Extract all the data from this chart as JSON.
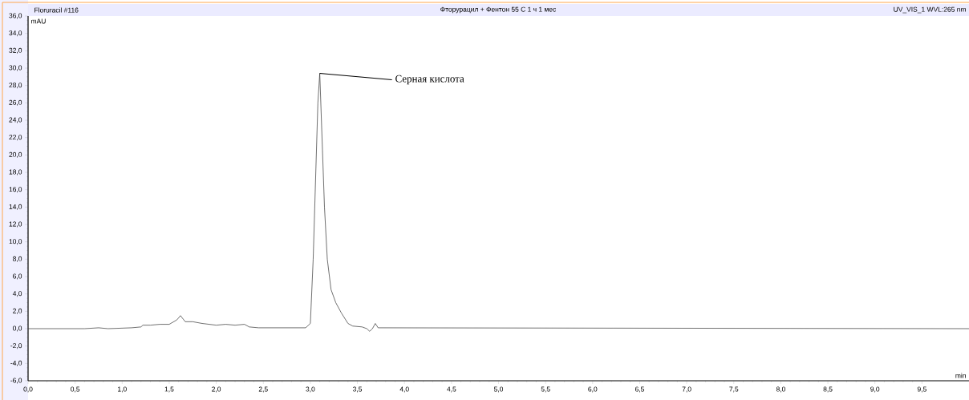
{
  "chart_data": {
    "type": "line",
    "title": "Фторурацил + Фентон 55 С 1 ч 1 мес",
    "xlabel": "min",
    "ylabel": "mAU",
    "annotations": [
      {
        "text": "Серная кислота",
        "x": 3.1,
        "y": 29.4
      },
      "Floruracil #116",
      "UV_VIS_1 WVL:265 nm"
    ],
    "xlim": [
      0,
      10
    ],
    "ylim": [
      -6,
      36
    ],
    "xticks": [
      {
        "value": 0,
        "label": "0,0"
      },
      {
        "value": 0.5,
        "label": "0,5"
      },
      {
        "value": 1,
        "label": "1,0"
      },
      {
        "value": 1.5,
        "label": "1,5"
      },
      {
        "value": 2,
        "label": "2,0"
      },
      {
        "value": 2.5,
        "label": "2,5"
      },
      {
        "value": 3,
        "label": "3,0"
      },
      {
        "value": 3.5,
        "label": "3,5"
      },
      {
        "value": 4,
        "label": "4,0"
      },
      {
        "value": 4.5,
        "label": "4,5"
      },
      {
        "value": 5,
        "label": "5,0"
      },
      {
        "value": 5.5,
        "label": "5,5"
      },
      {
        "value": 6,
        "label": "6,0"
      },
      {
        "value": 6.5,
        "label": "6,5"
      },
      {
        "value": 7,
        "label": "7,0"
      },
      {
        "value": 7.5,
        "label": "7,5"
      },
      {
        "value": 8,
        "label": "8,0"
      },
      {
        "value": 8.5,
        "label": "8,5"
      },
      {
        "value": 9,
        "label": "9,0"
      },
      {
        "value": 9.5,
        "label": "9,5"
      }
    ],
    "yticks": [
      {
        "value": -6,
        "label": "-6,0"
      },
      {
        "value": -4,
        "label": "-4,0"
      },
      {
        "value": -2,
        "label": "-2,0"
      },
      {
        "value": 0,
        "label": "0,0"
      },
      {
        "value": 2,
        "label": "2,0"
      },
      {
        "value": 4,
        "label": "4,0"
      },
      {
        "value": 6,
        "label": "6,0"
      },
      {
        "value": 8,
        "label": "8,0"
      },
      {
        "value": 10,
        "label": "10,0"
      },
      {
        "value": 12,
        "label": "12,0"
      },
      {
        "value": 14,
        "label": "14,0"
      },
      {
        "value": 16,
        "label": "16,0"
      },
      {
        "value": 18,
        "label": "18,0"
      },
      {
        "value": 20,
        "label": "20,0"
      },
      {
        "value": 22,
        "label": "22,0"
      },
      {
        "value": 24,
        "label": "24,0"
      },
      {
        "value": 26,
        "label": "26,0"
      },
      {
        "value": 28,
        "label": "28,0"
      },
      {
        "value": 30,
        "label": "30,0"
      },
      {
        "value": 32,
        "label": "32,0"
      },
      {
        "value": 34,
        "label": "34,0"
      },
      {
        "value": 36,
        "label": "36,0"
      }
    ],
    "series": [
      {
        "color": "#333333",
        "x": [
          0,
          0.6,
          0.75,
          0.85,
          1.1,
          1.2,
          1.22,
          1.3,
          1.4,
          1.5,
          1.58,
          1.62,
          1.67,
          1.75,
          1.85,
          2.0,
          2.1,
          2.2,
          2.3,
          2.35,
          2.45,
          2.95,
          3.0,
          3.03,
          3.08,
          3.1,
          3.15,
          3.18,
          3.22,
          3.27,
          3.33,
          3.4,
          3.45,
          3.55,
          3.6,
          3.63,
          3.66,
          3.69,
          3.72,
          10
        ],
        "values": [
          0,
          0,
          0.1,
          0,
          0.1,
          0.2,
          0.4,
          0.4,
          0.5,
          0.5,
          1.0,
          1.5,
          0.8,
          0.8,
          0.6,
          0.4,
          0.5,
          0.4,
          0.5,
          0.2,
          0.1,
          0.1,
          0.6,
          8,
          26,
          29.4,
          14,
          8,
          4.5,
          3,
          1.8,
          0.6,
          0.3,
          0.2,
          0,
          -0.3,
          0,
          0.6,
          0.1,
          0
        ]
      }
    ]
  }
}
